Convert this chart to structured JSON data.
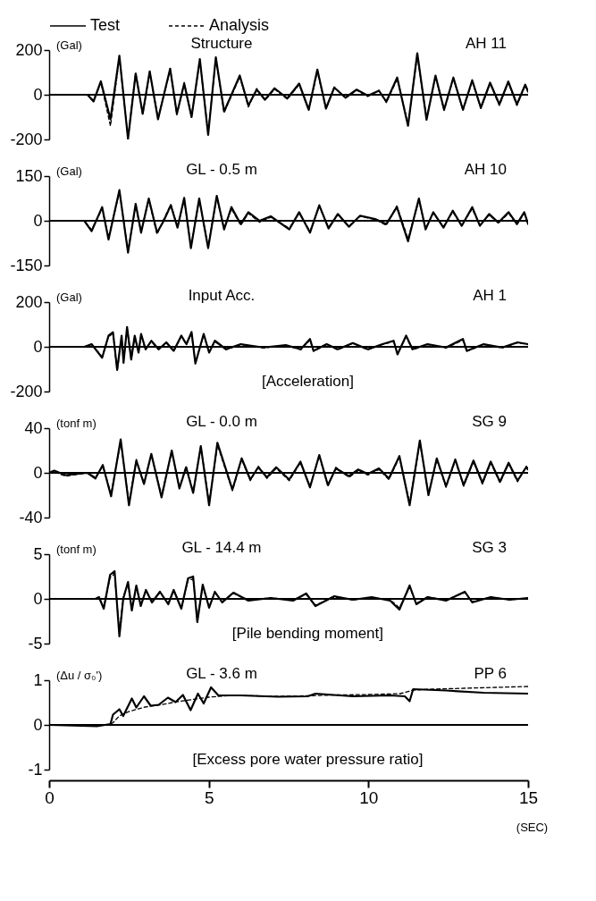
{
  "chart_data": [
    {
      "type": "line",
      "title": "Structure",
      "subtitle": "AH 11",
      "ylabel": "(Gal)",
      "legend": "top",
      "xlim": [
        0,
        15
      ],
      "ylim": [
        -200,
        200
      ],
      "yticks": [
        -200,
        0,
        200
      ],
      "tick_labels": "y",
      "ref_lines": [
        {
          "axis": "y",
          "value": 0
        }
      ],
      "x": [
        0,
        1.2,
        1.39,
        1.62,
        1.92,
        2.2,
        2.47,
        2.71,
        2.93,
        3.15,
        3.41,
        3.79,
        4.0,
        4.23,
        4.46,
        4.72,
        4.98,
        5.22,
        5.48,
        5.97,
        6.24,
        6.5,
        6.76,
        7.06,
        7.46,
        7.83,
        8.13,
        8.4,
        8.67,
        8.93,
        9.28,
        9.63,
        9.98,
        10.33,
        10.56,
        10.9,
        11.24,
        11.53,
        11.82,
        12.1,
        12.37,
        12.66,
        12.96,
        13.25,
        13.52,
        13.81,
        14.1,
        14.38,
        14.65,
        14.91,
        15
      ],
      "series": [
        {
          "name": "Test",
          "color": "#000000",
          "line_style": "solid",
          "values": [
            0,
            0,
            -30,
            60,
            -110,
            175,
            -198,
            95,
            -85,
            105,
            -110,
            117,
            -85,
            50,
            -100,
            160,
            -180,
            168,
            -75,
            86,
            -48,
            23,
            -22,
            29,
            -16,
            50,
            -67,
            113,
            -61,
            32,
            -13,
            23,
            -4,
            18,
            -31,
            77,
            -139,
            186,
            -112,
            86,
            -67,
            77,
            -67,
            65,
            -58,
            54,
            -43,
            59,
            -43,
            45,
            14
          ]
        },
        {
          "name": "Analysis",
          "color": "#000000",
          "line_style": "dashed",
          "values": [
            0,
            0,
            -25,
            55,
            -140,
            165,
            -190,
            100,
            -90,
            100,
            -105,
            110,
            -90,
            55,
            -95,
            150,
            -170,
            160,
            -80,
            80,
            -55,
            28,
            -25,
            25,
            -20,
            45,
            -70,
            105,
            -65,
            35,
            -15,
            20,
            -8,
            20,
            -35,
            70,
            -130,
            175,
            -105,
            80,
            -70,
            72,
            -70,
            60,
            -62,
            50,
            -48,
            55,
            -48,
            42,
            20
          ]
        }
      ]
    },
    {
      "type": "line",
      "title": "GL - 0.5 m",
      "subtitle": "AH 10",
      "ylabel": "(Gal)",
      "xlim": [
        0,
        15
      ],
      "ylim": [
        -150,
        150
      ],
      "yticks": [
        -150,
        0,
        150
      ],
      "tick_labels": "y",
      "ref_lines": [
        {
          "axis": "y",
          "value": 0
        }
      ],
      "x": [
        0,
        1.1,
        1.33,
        1.66,
        1.86,
        2.2,
        2.47,
        2.71,
        2.88,
        3.12,
        3.38,
        3.59,
        3.81,
        4.02,
        4.23,
        4.44,
        4.7,
        4.98,
        5.25,
        5.48,
        5.71,
        6.0,
        6.24,
        6.59,
        6.94,
        7.52,
        7.83,
        8.17,
        8.46,
        8.75,
        9.04,
        9.39,
        9.74,
        10.21,
        10.56,
        10.89,
        11.24,
        11.58,
        11.79,
        12.03,
        12.35,
        12.64,
        12.92,
        13.25,
        13.49,
        13.78,
        14.07,
        14.39,
        14.65,
        14.88,
        15
      ],
      "series": [
        {
          "color": "#000000",
          "line_style": "solid",
          "values": [
            0,
            0,
            -35,
            46,
            -63,
            103,
            -107,
            57,
            -40,
            75,
            -40,
            0,
            52,
            -23,
            77,
            -92,
            75,
            -92,
            84,
            -29,
            46,
            -11,
            29,
            0,
            15,
            -29,
            29,
            -40,
            52,
            -26,
            23,
            -20,
            17,
            6,
            -11,
            46,
            -69,
            75,
            -29,
            29,
            -23,
            34,
            -17,
            46,
            -17,
            23,
            -6,
            29,
            -11,
            29,
            -11
          ]
        },
        {
          "color": "#000000",
          "line_style": "dashed",
          "values": [
            0,
            0,
            -30,
            40,
            -55,
            95,
            -100,
            50,
            -35,
            70,
            -45,
            5,
            55,
            -20,
            70,
            -85,
            70,
            -85,
            78,
            -25,
            40,
            -15,
            25,
            -5,
            12,
            -25,
            25,
            -35,
            48,
            -22,
            20,
            -18,
            15,
            4,
            -15,
            50,
            -60,
            68,
            -25,
            25,
            -20,
            30,
            -15,
            40,
            -15,
            20,
            -8,
            25,
            -12,
            25,
            -8
          ]
        }
      ]
    },
    {
      "type": "line",
      "title": "Input Acc.",
      "subtitle": "AH 1",
      "ylabel": "(Gal)",
      "annotations": [
        "[Acceleration]"
      ],
      "xlim": [
        0,
        15
      ],
      "ylim": [
        -200,
        200
      ],
      "yticks": [
        -200,
        0,
        200
      ],
      "tick_labels": "y",
      "ref_lines": [
        {
          "axis": "y",
          "value": 0
        }
      ],
      "x": [
        0,
        1.1,
        1.33,
        1.66,
        1.86,
        2.0,
        2.13,
        2.27,
        2.33,
        2.44,
        2.57,
        2.68,
        2.8,
        2.88,
        3.02,
        3.2,
        3.43,
        3.67,
        3.9,
        4.14,
        4.3,
        4.46,
        4.58,
        4.84,
        5.01,
        5.19,
        5.54,
        6.0,
        6.71,
        7.41,
        7.88,
        8.17,
        8.28,
        8.69,
        9.04,
        9.51,
        9.98,
        10.44,
        10.79,
        10.91,
        11.18,
        11.38,
        11.85,
        12.43,
        12.96,
        13.08,
        13.61,
        14.19,
        14.67,
        15
      ],
      "series": [
        {
          "color": "#000000",
          "line_style": "solid",
          "values": [
            0,
            0,
            12,
            -49,
            50,
            65,
            -103,
            50,
            -72,
            89,
            -57,
            50,
            -26,
            58,
            -11,
            27,
            -11,
            20,
            -18,
            50,
            12,
            66,
            -75,
            58,
            -26,
            27,
            -11,
            12,
            -3,
            8,
            -11,
            35,
            -18,
            12,
            -11,
            17,
            -11,
            12,
            27,
            -34,
            50,
            -11,
            12,
            -3,
            35,
            -18,
            12,
            -3,
            20,
            12
          ]
        },
        {
          "color": "#000000",
          "line_style": "dashed",
          "values": [
            0,
            0,
            10,
            -45,
            45,
            60,
            -110,
            45,
            -68,
            82,
            -55,
            45,
            -22,
            52,
            -14,
            24,
            -13,
            18,
            -20,
            45,
            10,
            60,
            -70,
            52,
            -24,
            24,
            -13,
            10,
            -5,
            6,
            -13,
            30,
            -20,
            10,
            -13,
            15,
            -13,
            10,
            24,
            -30,
            45,
            -13,
            10,
            -5,
            30,
            -20,
            10,
            -5,
            18,
            10
          ]
        }
      ]
    },
    {
      "type": "line",
      "title": "GL - 0.0 m",
      "subtitle": "SG 9",
      "ylabel": "(tonf m)",
      "xlim": [
        0,
        15
      ],
      "ylim": [
        -40,
        40
      ],
      "yticks": [
        -40,
        0,
        40
      ],
      "tick_labels": "y",
      "ref_lines": [
        {
          "axis": "y",
          "value": 0
        }
      ],
      "x": [
        0,
        0.16,
        0.51,
        1.2,
        1.45,
        1.68,
        1.94,
        2.24,
        2.5,
        2.73,
        2.97,
        3.2,
        3.52,
        3.84,
        4.08,
        4.29,
        4.51,
        4.75,
        5.01,
        5.27,
        5.74,
        6.03,
        6.3,
        6.55,
        6.82,
        7.11,
        7.52,
        7.87,
        8.17,
        8.46,
        8.73,
        8.98,
        9.39,
        9.68,
        9.98,
        10.33,
        10.64,
        10.97,
        11.29,
        11.61,
        11.88,
        12.14,
        12.43,
        12.72,
        12.98,
        13.29,
        13.57,
        13.83,
        14.12,
        14.39,
        14.67,
        14.94,
        15
      ],
      "series": [
        {
          "color": "#000000",
          "line_style": "solid",
          "values": [
            0,
            2,
            -2,
            0,
            -5,
            7,
            -21,
            30,
            -29,
            11,
            -10,
            17,
            -22,
            20,
            -14,
            5,
            -18,
            24,
            -29,
            27,
            -15,
            13,
            -6,
            5,
            -4,
            5,
            -6,
            10,
            -13,
            16,
            -11,
            4,
            -3,
            3,
            -1,
            4,
            -5,
            15,
            -29,
            29,
            -20,
            13,
            -12,
            12,
            -11,
            11,
            -9,
            10,
            -8,
            9,
            -7,
            5,
            3
          ]
        },
        {
          "color": "#000000",
          "line_style": "dashed",
          "values": [
            0,
            1,
            -3,
            0,
            -4,
            6,
            -19,
            28,
            -27,
            12,
            -9,
            16,
            -20,
            19,
            -13,
            6,
            -17,
            23,
            -27,
            25,
            -16,
            12,
            -7,
            6,
            -5,
            4,
            -7,
            9,
            -12,
            15,
            -12,
            5,
            -4,
            2,
            -2,
            3,
            -6,
            14,
            -27,
            27,
            -19,
            12,
            -13,
            11,
            -12,
            10,
            -10,
            9,
            -9,
            8,
            -8,
            6,
            4
          ]
        }
      ]
    },
    {
      "type": "line",
      "title": "GL - 14.4 m",
      "subtitle": "SG 3",
      "ylabel": "(tonf m)",
      "annotations": [
        "[Pile bending moment]"
      ],
      "xlim": [
        0,
        15
      ],
      "ylim": [
        -5,
        5
      ],
      "yticks": [
        -5,
        0,
        5
      ],
      "tick_labels": "y",
      "ref_lines": [
        {
          "axis": "y",
          "value": 0
        }
      ],
      "x": [
        0,
        1.45,
        1.56,
        1.71,
        1.91,
        2.05,
        2.2,
        2.32,
        2.47,
        2.59,
        2.73,
        2.87,
        3.03,
        3.22,
        3.47,
        3.73,
        3.9,
        4.14,
        4.35,
        4.51,
        4.64,
        4.81,
        5.01,
        5.19,
        5.42,
        5.77,
        6.24,
        6.94,
        7.64,
        8.05,
        8.34,
        8.93,
        9.51,
        10.1,
        10.68,
        10.97,
        11.29,
        11.5,
        11.85,
        12.43,
        13.02,
        13.25,
        13.83,
        14.42,
        15
      ],
      "series": [
        {
          "color": "#000000",
          "line_style": "solid",
          "values": [
            0,
            0,
            0.2,
            -1.1,
            2.7,
            3.1,
            -4.2,
            0,
            1.9,
            -1.3,
            1.5,
            -0.8,
            1.0,
            -0.4,
            0.8,
            -0.6,
            1.0,
            -1.1,
            2.3,
            2.5,
            -2.6,
            1.6,
            -1.0,
            0.8,
            -0.4,
            0.7,
            -0.2,
            0.1,
            -0.2,
            0.6,
            -0.8,
            0.3,
            -0.1,
            0.2,
            -0.2,
            -1.2,
            1.5,
            -0.6,
            0.2,
            -0.2,
            0.8,
            -0.4,
            0.2,
            -0.1,
            0.1
          ]
        },
        {
          "color": "#000000",
          "line_style": "dashed",
          "values": [
            0,
            0,
            0.1,
            -0.9,
            2.4,
            2.8,
            -3.8,
            0.2,
            1.7,
            -1.1,
            1.3,
            -0.7,
            0.9,
            -0.3,
            0.7,
            -0.5,
            0.9,
            -1.0,
            2.1,
            2.2,
            -2.3,
            1.4,
            -0.9,
            0.7,
            -0.3,
            0.6,
            -0.1,
            0.1,
            -0.1,
            0.5,
            -0.7,
            0.2,
            -0.1,
            0.1,
            -0.1,
            -1.0,
            1.3,
            -0.5,
            0.2,
            -0.1,
            0.7,
            -0.3,
            0.2,
            -0.1,
            0.1
          ]
        }
      ]
    },
    {
      "type": "line",
      "title": "GL - 3.6 m",
      "subtitle": "PP 6",
      "ylabel": "(Δu / σ₀')",
      "annotations": [
        "[Excess pore water pressure ratio]"
      ],
      "xlabel": "(SEC)",
      "xlim": [
        0,
        15
      ],
      "xticks": [
        0,
        5,
        10,
        15
      ],
      "ylim": [
        -1,
        1
      ],
      "yticks": [
        -1,
        0,
        1
      ],
      "ref_lines": [
        {
          "axis": "y",
          "value": 0
        }
      ],
      "series": [
        {
          "color": "#000000",
          "line_style": "solid",
          "x": [
            0,
            1.5,
            1.92,
            2.0,
            2.2,
            2.32,
            2.59,
            2.73,
            2.97,
            3.18,
            3.43,
            3.72,
            3.96,
            4.19,
            4.43,
            4.66,
            4.84,
            5.07,
            5.3,
            6.0,
            7.17,
            8.1,
            8.34,
            9.51,
            10.68,
            11.14,
            11.29,
            11.4,
            12.43,
            13.61,
            15
          ],
          "values": [
            0,
            -0.03,
            0.02,
            0.23,
            0.35,
            0.2,
            0.59,
            0.39,
            0.64,
            0.43,
            0.45,
            0.61,
            0.51,
            0.67,
            0.33,
            0.7,
            0.48,
            0.84,
            0.66,
            0.66,
            0.63,
            0.64,
            0.7,
            0.64,
            0.66,
            0.64,
            0.53,
            0.8,
            0.77,
            0.72,
            0.7
          ]
        },
        {
          "color": "#000000",
          "line_style": "dashed",
          "x": [
            0,
            1.9,
            2.0,
            2.2,
            2.5,
            3.0,
            3.5,
            4.0,
            4.5,
            5.0,
            5.5,
            6.0,
            7,
            8,
            9,
            10,
            11,
            11.4,
            12,
            13,
            14,
            15
          ],
          "values": [
            0,
            0,
            0.05,
            0.2,
            0.3,
            0.4,
            0.45,
            0.52,
            0.57,
            0.62,
            0.65,
            0.66,
            0.64,
            0.65,
            0.67,
            0.68,
            0.7,
            0.78,
            0.8,
            0.82,
            0.84,
            0.86
          ]
        }
      ]
    }
  ]
}
